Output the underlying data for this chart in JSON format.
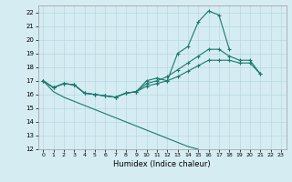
{
  "xlabel": "Humidex (Indice chaleur)",
  "x": [
    0,
    1,
    2,
    3,
    4,
    5,
    6,
    7,
    8,
    9,
    10,
    11,
    12,
    13,
    14,
    15,
    16,
    17,
    18,
    19,
    20,
    21,
    22,
    23
  ],
  "line1": [
    17.0,
    16.5,
    16.8,
    16.7,
    16.1,
    16.0,
    15.9,
    15.8,
    16.1,
    16.2,
    17.0,
    17.2,
    17.0,
    19.0,
    19.5,
    21.3,
    22.1,
    21.8,
    19.3,
    null,
    null,
    null,
    null,
    null
  ],
  "line2": [
    17.0,
    16.5,
    16.8,
    16.7,
    16.1,
    16.0,
    15.9,
    15.8,
    16.1,
    16.2,
    16.8,
    17.0,
    17.3,
    17.8,
    18.3,
    18.8,
    19.3,
    19.3,
    18.8,
    18.5,
    18.5,
    17.5,
    null,
    null
  ],
  "line3": [
    17.0,
    16.5,
    16.8,
    16.7,
    16.1,
    16.0,
    15.9,
    15.8,
    16.1,
    16.2,
    16.6,
    16.8,
    17.0,
    17.3,
    17.7,
    18.1,
    18.5,
    18.5,
    18.5,
    18.3,
    18.3,
    17.5,
    null,
    null
  ],
  "line4": [
    17.0,
    16.2,
    15.8,
    15.5,
    15.2,
    14.9,
    14.6,
    14.3,
    14.0,
    13.7,
    13.4,
    13.1,
    12.8,
    12.5,
    12.2,
    12.0,
    null,
    null,
    null,
    null,
    null,
    null,
    null,
    null
  ],
  "color": "#1a7a6e",
  "bg_color": "#d5ecf2",
  "grid_color": "#b8d8e0",
  "ylim": [
    12,
    22.5
  ],
  "xlim": [
    -0.5,
    23.5
  ],
  "yticks": [
    12,
    13,
    14,
    15,
    16,
    17,
    18,
    19,
    20,
    21,
    22
  ],
  "xticks": [
    0,
    1,
    2,
    3,
    4,
    5,
    6,
    7,
    8,
    9,
    10,
    11,
    12,
    13,
    14,
    15,
    16,
    17,
    18,
    19,
    20,
    21,
    22,
    23
  ]
}
